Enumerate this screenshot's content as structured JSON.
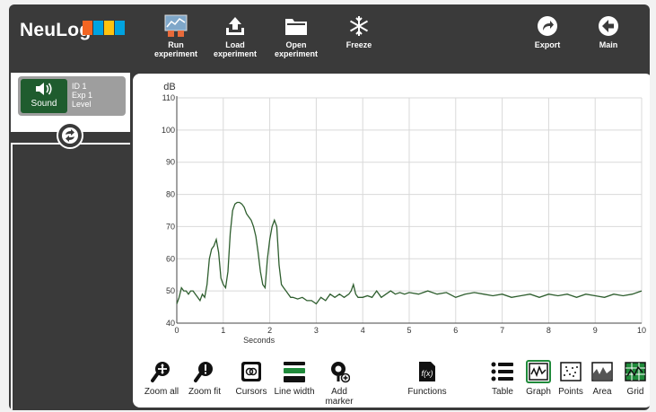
{
  "header": {
    "logo_text": "NeuLog",
    "logo_colors": [
      "#f26522",
      "#00a3e0",
      "#ffc20e",
      "#00a3e0"
    ],
    "buttons": [
      {
        "id": "run",
        "label_1": "Run",
        "label_2": "experiment",
        "icon": "run-experiment-icon"
      },
      {
        "id": "load",
        "label_1": "Load",
        "label_2": "experiment",
        "icon": "upload-icon"
      },
      {
        "id": "open",
        "label_1": "Open",
        "label_2": "experiment",
        "icon": "folder-icon"
      },
      {
        "id": "freeze",
        "label_1": "Freeze",
        "label_2": "",
        "icon": "snowflake-icon"
      },
      {
        "id": "export",
        "label_1": "Export",
        "label_2": "",
        "icon": "export-icon"
      },
      {
        "id": "main",
        "label_1": "Main",
        "label_2": "",
        "icon": "back-arrow-icon"
      }
    ]
  },
  "sensor": {
    "name": "Sound",
    "id_line": "ID 1",
    "exp_line": "Exp 1",
    "level_line": "Level",
    "icon": "speaker-icon"
  },
  "chart_data": {
    "type": "line",
    "ylabel": "dB",
    "xlabel": "Seconds",
    "xlim": [
      0,
      10
    ],
    "ylim": [
      40,
      110
    ],
    "x_ticks": [
      0,
      1,
      2,
      3,
      4,
      5,
      6,
      7,
      8,
      9,
      10
    ],
    "y_ticks": [
      40,
      50,
      60,
      70,
      80,
      90,
      100,
      110
    ],
    "grid": true,
    "line_color": "#2e5e2e",
    "series": [
      {
        "x": [
          0,
          0.05,
          0.1,
          0.15,
          0.2,
          0.25,
          0.3,
          0.35,
          0.4,
          0.45,
          0.5,
          0.55,
          0.6,
          0.65,
          0.7,
          0.75,
          0.8,
          0.85,
          0.9,
          0.95,
          1.0,
          1.05,
          1.1,
          1.15,
          1.2,
          1.25,
          1.3,
          1.35,
          1.4,
          1.45,
          1.5,
          1.55,
          1.6,
          1.65,
          1.7,
          1.75,
          1.8,
          1.85,
          1.9,
          1.95,
          2.0,
          2.05,
          2.1,
          2.15,
          2.2,
          2.25,
          2.3,
          2.35,
          2.4,
          2.45,
          2.5,
          2.6,
          2.7,
          2.8,
          2.9,
          3.0,
          3.1,
          3.2,
          3.3,
          3.4,
          3.5,
          3.6,
          3.7,
          3.75,
          3.8,
          3.85,
          3.9,
          4.0,
          4.1,
          4.2,
          4.3,
          4.4,
          4.5,
          4.6,
          4.7,
          4.8,
          4.9,
          5.0,
          5.2,
          5.4,
          5.6,
          5.8,
          6.0,
          6.2,
          6.4,
          6.6,
          6.8,
          7.0,
          7.2,
          7.4,
          7.6,
          7.8,
          8.0,
          8.2,
          8.4,
          8.6,
          8.8,
          9.0,
          9.2,
          9.4,
          9.6,
          9.8,
          10.0
        ],
        "y": [
          46,
          48,
          51,
          50,
          50,
          49,
          50,
          50,
          49,
          48,
          47,
          49,
          48,
          52,
          60,
          63,
          64,
          66,
          62,
          54,
          52,
          51,
          56,
          68,
          75,
          77,
          77.5,
          77.5,
          77,
          76,
          74,
          73,
          72,
          70,
          67,
          62,
          56,
          52,
          51,
          60,
          66,
          70,
          72,
          70,
          58,
          52,
          51,
          50,
          49,
          48,
          48,
          47.5,
          48,
          47,
          47,
          46,
          48,
          47,
          49,
          48,
          49,
          48,
          49,
          50,
          52,
          49,
          48,
          48,
          48.5,
          48,
          50,
          48,
          49,
          50,
          49,
          49.5,
          49,
          49.5,
          49,
          50,
          49,
          49.5,
          48,
          49,
          49.5,
          49,
          48.5,
          49,
          48,
          48.5,
          49,
          48,
          49,
          48.5,
          49,
          48,
          49,
          48.5,
          48,
          49,
          48.5,
          49,
          50
        ]
      }
    ]
  },
  "bottom_toolbar": [
    {
      "id": "zoom-all",
      "label_1": "Zoom all",
      "label_2": "",
      "icon": "zoom-all-icon"
    },
    {
      "id": "zoom-fit",
      "label_1": "Zoom fit",
      "label_2": "",
      "icon": "zoom-fit-icon"
    },
    {
      "id": "cursors",
      "label_1": "Cursors",
      "label_2": "",
      "icon": "cursors-icon"
    },
    {
      "id": "line-width",
      "label_1": "Line width",
      "label_2": "",
      "icon": "line-width-icon"
    },
    {
      "id": "add-marker",
      "label_1": "Add",
      "label_2": "marker",
      "icon": "add-marker-icon"
    },
    {
      "id": "functions",
      "label_1": "Functions",
      "label_2": "",
      "icon": "functions-icon"
    },
    {
      "id": "table",
      "label_1": "Table",
      "label_2": "",
      "icon": "table-icon"
    },
    {
      "id": "graph",
      "label_1": "Graph",
      "label_2": "",
      "icon": "graph-icon"
    },
    {
      "id": "points",
      "label_1": "Points",
      "label_2": "",
      "icon": "points-icon"
    },
    {
      "id": "area",
      "label_1": "Area",
      "label_2": "",
      "icon": "area-icon"
    },
    {
      "id": "grid",
      "label_1": "Grid",
      "label_2": "",
      "icon": "grid-icon"
    }
  ]
}
